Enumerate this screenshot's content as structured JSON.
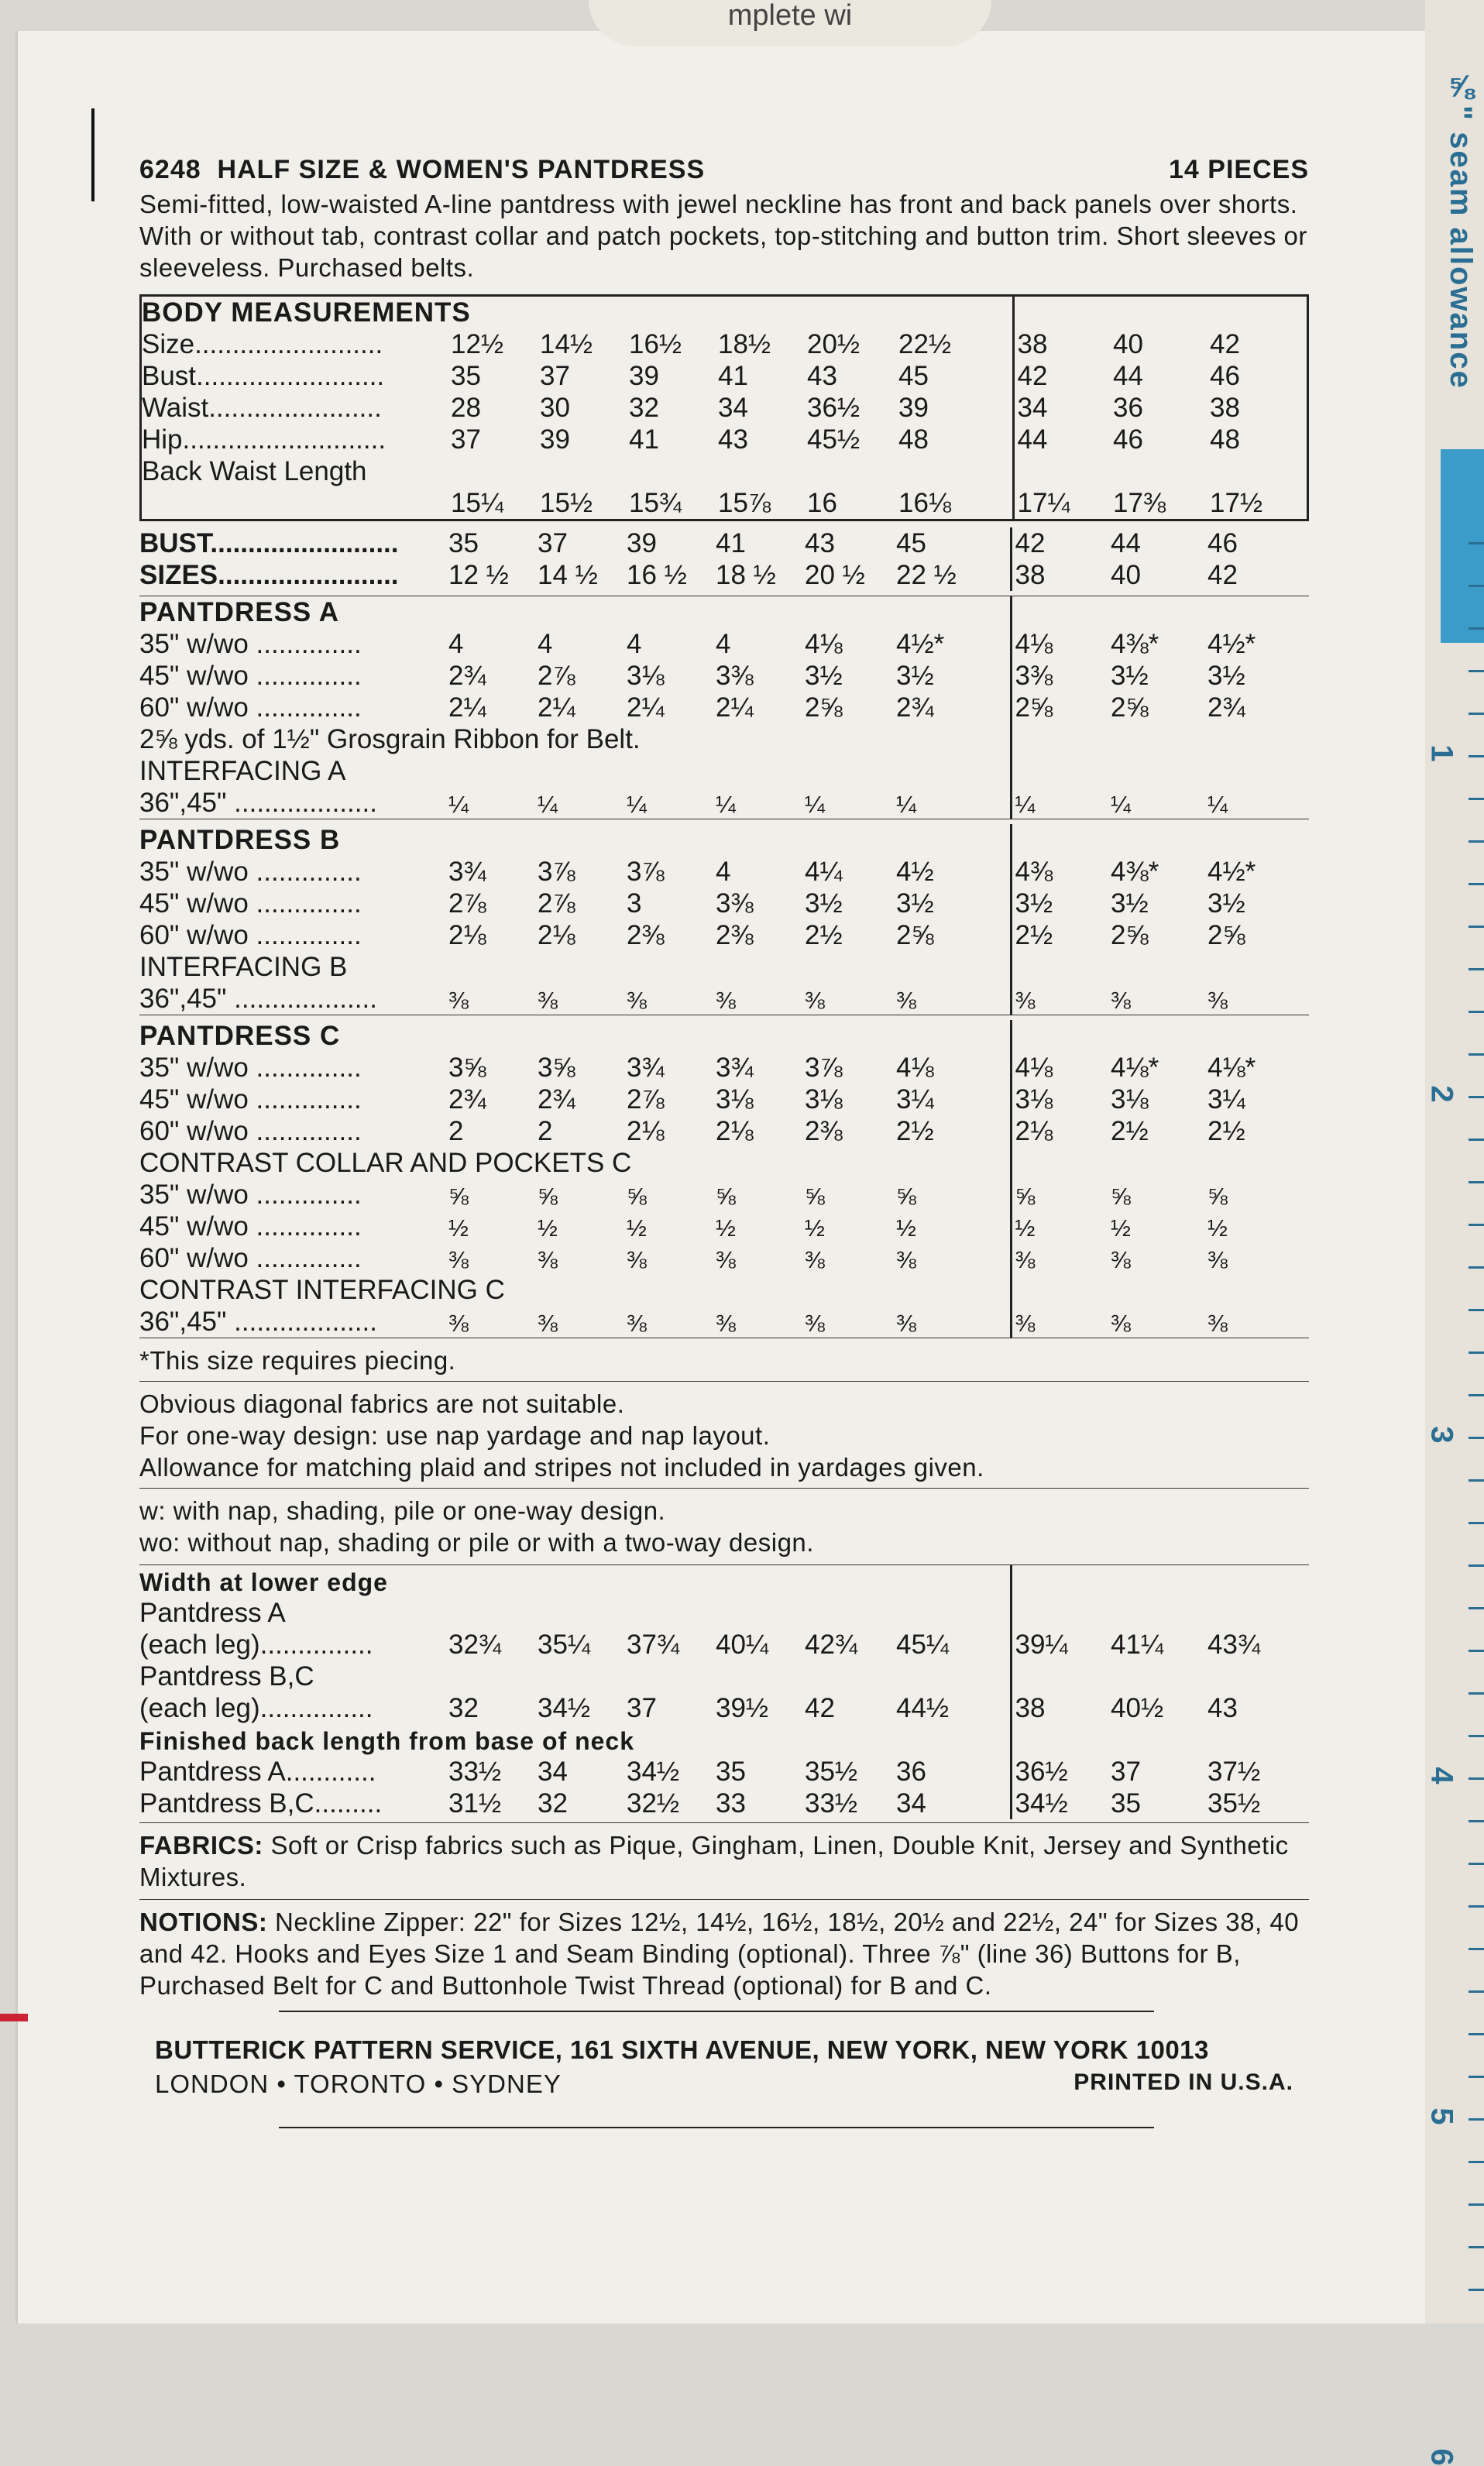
{
  "top_flap": "mplete wi",
  "header": {
    "pattern_number": "6248",
    "title": "HALF SIZE & WOMEN'S PANTDRESS",
    "pieces": "14 PIECES"
  },
  "description": "Semi-fitted, low-waisted A-line pantdress with jewel neckline has front and back panels over shorts. With or without tab, contrast collar and patch pockets, top-stitching and button trim. Short sleeves or sleeveless. Purchased belts.",
  "body_measurements": {
    "title": "BODY MEASUREMENTS",
    "rows": [
      {
        "label": "Size.........................",
        "values": [
          "12½",
          "14½",
          "16½",
          "18½",
          "20½",
          "22½",
          "38",
          "40",
          "42"
        ]
      },
      {
        "label": "Bust.........................",
        "values": [
          "35",
          "37",
          "39",
          "41",
          "43",
          "45",
          "42",
          "44",
          "46"
        ]
      },
      {
        "label": "Waist.......................",
        "values": [
          "28",
          "30",
          "32",
          "34",
          "36½",
          "39",
          "34",
          "36",
          "38"
        ]
      },
      {
        "label": "Hip...........................",
        "values": [
          "37",
          "39",
          "41",
          "43",
          "45½",
          "48",
          "44",
          "46",
          "48"
        ]
      }
    ],
    "back_waist_label": "Back Waist Length",
    "back_waist_values": [
      "15¼",
      "15½",
      "15¾",
      "15⅞",
      "16",
      "16⅛",
      "17¼",
      "17⅜",
      "17½"
    ]
  },
  "bust_sizes": {
    "bust_label": "BUST.........................",
    "bust": [
      "35",
      "37",
      "39",
      "41",
      "43",
      "45",
      "42",
      "44",
      "46"
    ],
    "sizes_label": "SIZES........................",
    "sizes": [
      "12 ½",
      "14 ½",
      "16 ½",
      "18 ½",
      "20 ½",
      "22 ½",
      "38",
      "40",
      "42"
    ]
  },
  "pantdress_a": {
    "title": "PANTDRESS A",
    "rows": [
      {
        "label": "35\" w/wo ..............",
        "values": [
          "4",
          "4",
          "4",
          "4",
          "4⅛",
          "4½*",
          "4⅛",
          "4⅜*",
          "4½*"
        ]
      },
      {
        "label": "45\" w/wo ..............",
        "values": [
          "2¾",
          "2⅞",
          "3⅛",
          "3⅜",
          "3½",
          "3½",
          "3⅜",
          "3½",
          "3½"
        ]
      },
      {
        "label": "60\" w/wo ..............",
        "values": [
          "2¼",
          "2¼",
          "2¼",
          "2¼",
          "2⅝",
          "2¾",
          "2⅝",
          "2⅝",
          "2¾"
        ]
      }
    ],
    "ribbon_note": "2⅝ yds. of 1½\" Grosgrain Ribbon for Belt.",
    "interfacing_title": "INTERFACING A",
    "interfacing_label": "36\",45\" ...................",
    "interfacing_values": [
      "¼",
      "¼",
      "¼",
      "¼",
      "¼",
      "¼",
      "¼",
      "¼",
      "¼"
    ]
  },
  "pantdress_b": {
    "title": "PANTDRESS B",
    "rows": [
      {
        "label": "35\" w/wo ..............",
        "values": [
          "3¾",
          "3⅞",
          "3⅞",
          "4",
          "4¼",
          "4½",
          "4⅜",
          "4⅜*",
          "4½*"
        ]
      },
      {
        "label": "45\" w/wo ..............",
        "values": [
          "2⅞",
          "2⅞",
          "3",
          "3⅜",
          "3½",
          "3½",
          "3½",
          "3½",
          "3½"
        ]
      },
      {
        "label": "60\" w/wo ..............",
        "values": [
          "2⅛",
          "2⅛",
          "2⅜",
          "2⅜",
          "2½",
          "2⅝",
          "2½",
          "2⅝",
          "2⅝"
        ]
      }
    ],
    "interfacing_title": "INTERFACING B",
    "interfacing_label": "36\",45\" ...................",
    "interfacing_values": [
      "⅜",
      "⅜",
      "⅜",
      "⅜",
      "⅜",
      "⅜",
      "⅜",
      "⅜",
      "⅜"
    ]
  },
  "pantdress_c": {
    "title": "PANTDRESS C",
    "rows": [
      {
        "label": "35\" w/wo ..............",
        "values": [
          "3⅝",
          "3⅝",
          "3¾",
          "3¾",
          "3⅞",
          "4⅛",
          "4⅛",
          "4⅛*",
          "4⅛*"
        ]
      },
      {
        "label": "45\" w/wo ..............",
        "values": [
          "2¾",
          "2¾",
          "2⅞",
          "3⅛",
          "3⅛",
          "3¼",
          "3⅛",
          "3⅛",
          "3¼"
        ]
      },
      {
        "label": "60\" w/wo ..............",
        "values": [
          "2",
          "2",
          "2⅛",
          "2⅛",
          "2⅜",
          "2½",
          "2⅛",
          "2½",
          "2½"
        ]
      }
    ],
    "contrast_title": "CONTRAST COLLAR AND POCKETS C",
    "contrast_rows": [
      {
        "label": "35\" w/wo ..............",
        "values": [
          "⅝",
          "⅝",
          "⅝",
          "⅝",
          "⅝",
          "⅝",
          "⅝",
          "⅝",
          "⅝"
        ]
      },
      {
        "label": "45\" w/wo ..............",
        "values": [
          "½",
          "½",
          "½",
          "½",
          "½",
          "½",
          "½",
          "½",
          "½"
        ]
      },
      {
        "label": "60\" w/wo ..............",
        "values": [
          "⅜",
          "⅜",
          "⅜",
          "⅜",
          "⅜",
          "⅜",
          "⅜",
          "⅜",
          "⅜"
        ]
      }
    ],
    "interfacing_title": "CONTRAST INTERFACING C",
    "interfacing_label": "36\",45\" ...................",
    "interfacing_values": [
      "⅜",
      "⅜",
      "⅜",
      "⅜",
      "⅜",
      "⅜",
      "⅜",
      "⅜",
      "⅜"
    ]
  },
  "piecing_note": "*This size requires piecing.",
  "fabric_notes": [
    "Obvious diagonal fabrics are not suitable.",
    "For one-way design: use nap yardage and nap layout.",
    "Allowance for matching plaid and stripes not included in yardages given."
  ],
  "nap_notes": [
    "w: with nap, shading, pile or one-way design.",
    "wo: without nap, shading or pile or with a two-way design."
  ],
  "finished": {
    "width_title": "Width at lower edge",
    "pant_a_label": "Pantdress A",
    "pant_a_leg_label": "(each leg)...............",
    "pant_a_values": [
      "32¾",
      "35¼",
      "37¾",
      "40¼",
      "42¾",
      "45¼",
      "39¼",
      "41¼",
      "43¾"
    ],
    "pant_bc_label": "Pantdress B,C",
    "pant_bc_leg_label": "(each leg)...............",
    "pant_bc_values": [
      "32",
      "34½",
      "37",
      "39½",
      "42",
      "44½",
      "38",
      "40½",
      "43"
    ],
    "back_length_title": "Finished back length from base of neck",
    "back_a_label": "Pantdress A............",
    "back_a_values": [
      "33½",
      "34",
      "34½",
      "35",
      "35½",
      "36",
      "36½",
      "37",
      "37½"
    ],
    "back_bc_label": "Pantdress B,C.........",
    "back_bc_values": [
      "31½",
      "32",
      "32½",
      "33",
      "33½",
      "34",
      "34½",
      "35",
      "35½"
    ]
  },
  "fabrics": {
    "label": "FABRICS:",
    "text": " Soft or Crisp fabrics such as Pique, Gingham, Linen, Double Knit, Jersey and Synthetic Mixtures."
  },
  "notions": {
    "label": "NOTIONS:",
    "text": " Neckline Zipper: 22\" for Sizes 12½, 14½, 16½, 18½, 20½ and 22½, 24\" for Sizes 38, 40 and 42. Hooks and Eyes Size 1 and Seam Binding (optional). Three ⅞\" (line 36) Buttons for B, Purchased Belt for C and Buttonhole Twist Thread (optional) for B and C."
  },
  "footer": {
    "service": "BUTTERICK PATTERN SERVICE, 161 SIXTH AVENUE, NEW YORK, NEW YORK 10013",
    "cities": "LONDON • TORONTO • SYDNEY",
    "printed": "PRINTED IN U.S.A."
  },
  "ruler": {
    "label": "⅝\" seam allowance",
    "marks": [
      "1",
      "2",
      "3",
      "4",
      "5",
      "6"
    ]
  }
}
